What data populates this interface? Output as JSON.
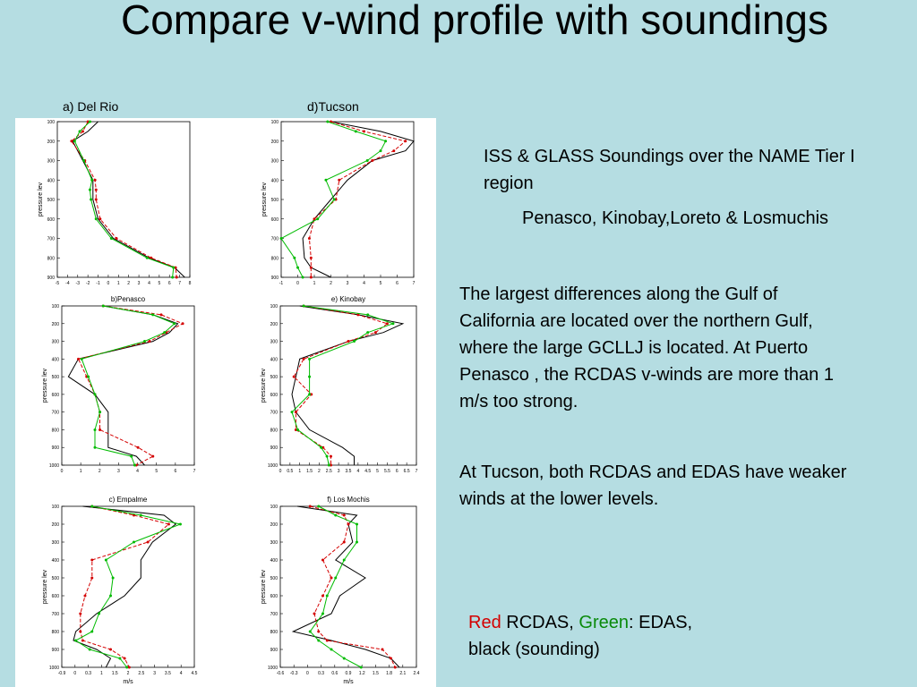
{
  "slide": {
    "title": "Compare v-wind profile with soundings",
    "top_labels": {
      "left": "a) Del Rio",
      "right": "d)Tucson"
    },
    "text": {
      "p1": "ISS & GLASS  Soundings over the NAME Tier I region",
      "p2": "Penasco, Kinobay,Loreto & Losmuchis",
      "p3": "The largest differences along the Gulf of California are located over the northern Gulf, where the large GCLLJ is located. At Puerto Penasco , the RCDAS v-winds are  more than 1 m/s too strong.",
      "p4": "At  Tucson, both RCDAS and EDAS have weaker winds at the lower levels.",
      "legend": {
        "red_word": "Red",
        "red_rest": " RCDAS, ",
        "green_word": "Green",
        "green_rest": ": EDAS,",
        "black_rest": "black (sounding)"
      }
    }
  },
  "colors": {
    "bg": "#b5dde2",
    "sounding": "#000000",
    "rcdas": "#d40000",
    "edas": "#00bb00"
  },
  "chart_data": [
    {
      "type": "line",
      "panel_title": "",
      "ylabel": "pressure lev",
      "xlabel": "",
      "ylim": [
        100,
        900
      ],
      "yticks": [
        100,
        200,
        300,
        400,
        500,
        600,
        700,
        800,
        900
      ],
      "xlim": [
        -5,
        8
      ],
      "xtick_labels": [
        "-5",
        "-4",
        "-3",
        "-2",
        "-1",
        "0",
        "1",
        "2",
        "3",
        "4",
        "5",
        "6",
        "7",
        "8"
      ],
      "y": [
        100,
        150,
        200,
        300,
        400,
        450,
        500,
        600,
        700,
        800,
        850,
        900
      ],
      "series": [
        {
          "name": "sounding",
          "values": [
            -1.0,
            -2.0,
            -3.5,
            -2.5,
            -1.5,
            -1.5,
            -1.5,
            -1.0,
            0.5,
            4.0,
            6.5,
            7.5
          ]
        },
        {
          "name": "RCDAS",
          "values": [
            -2.0,
            -2.5,
            -3.6,
            -2.3,
            -1.3,
            -1.2,
            -1.2,
            -0.8,
            0.8,
            4.2,
            6.6,
            6.7
          ]
        },
        {
          "name": "EDAS",
          "values": [
            -1.8,
            -2.8,
            -3.3,
            -2.4,
            -1.6,
            -1.8,
            -1.7,
            -1.2,
            0.3,
            3.8,
            6.4,
            6.3
          ]
        }
      ]
    },
    {
      "type": "line",
      "panel_title": "",
      "ylabel": "pressure lev",
      "xlabel": "",
      "ylim": [
        100,
        900
      ],
      "yticks": [
        100,
        200,
        300,
        400,
        500,
        600,
        700,
        800,
        900
      ],
      "xlim": [
        -1,
        7
      ],
      "xtick_labels": [
        "-1",
        "0",
        "1",
        "2",
        "3",
        "4",
        "5",
        "6",
        "7"
      ],
      "y": [
        100,
        150,
        200,
        250,
        300,
        400,
        500,
        600,
        700,
        800,
        850,
        900
      ],
      "series": [
        {
          "name": "sounding",
          "values": [
            2.0,
            5.0,
            7.0,
            6.5,
            4.5,
            3.0,
            2.0,
            1.0,
            0.3,
            0.4,
            0.8,
            2.0
          ]
        },
        {
          "name": "RCDAS",
          "values": [
            2.0,
            4.0,
            6.5,
            5.8,
            4.5,
            2.5,
            2.3,
            1.0,
            0.7,
            0.8,
            0.8,
            0.8
          ]
        },
        {
          "name": "EDAS",
          "values": [
            1.8,
            3.5,
            5.3,
            5.0,
            4.2,
            1.7,
            2.2,
            1.2,
            -1.0,
            -0.2,
            0.0,
            0.3
          ]
        }
      ]
    },
    {
      "type": "line",
      "panel_title": "b)Penasco",
      "ylabel": "pressure lev",
      "xlabel": "",
      "ylim": [
        100,
        1000
      ],
      "yticks": [
        100,
        200,
        300,
        400,
        500,
        600,
        700,
        800,
        900,
        1000
      ],
      "xlim": [
        0,
        8
      ],
      "xtick_labels": [
        "0",
        "1",
        "2",
        "3",
        "4",
        "5",
        "6",
        "7"
      ],
      "y": [
        100,
        150,
        200,
        250,
        300,
        400,
        500,
        600,
        700,
        800,
        900,
        950,
        1000
      ],
      "series": [
        {
          "name": "sounding",
          "values": [
            2.5,
            5.5,
            7.0,
            6.5,
            5.5,
            1.0,
            0.4,
            2.0,
            2.8,
            2.8,
            2.8,
            4.5,
            5.0
          ]
        },
        {
          "name": "RCDAS",
          "values": [
            2.5,
            6.0,
            7.3,
            6.3,
            5.3,
            1.0,
            1.5,
            2.0,
            2.3,
            2.3,
            4.6,
            5.5,
            4.5
          ]
        },
        {
          "name": "EDAS",
          "values": [
            2.5,
            5.5,
            6.8,
            6.2,
            5.0,
            1.2,
            1.6,
            2.0,
            2.3,
            2.0,
            2.0,
            4.2,
            4.4
          ]
        }
      ]
    },
    {
      "type": "line",
      "panel_title": "e)  Kinobay",
      "ylabel": "pressure lev",
      "xlabel": "",
      "ylim": [
        100,
        1000
      ],
      "yticks": [
        100,
        200,
        300,
        400,
        500,
        600,
        700,
        800,
        900,
        1000
      ],
      "xlim": [
        0,
        7
      ],
      "xtick_labels": [
        "0",
        "0.5",
        "1",
        "1.5",
        "2",
        "2.5",
        "3",
        "3.5",
        "4",
        "4.5",
        "5",
        "5.5",
        "6",
        "6.5",
        "7"
      ],
      "y": [
        100,
        150,
        200,
        250,
        300,
        400,
        500,
        600,
        700,
        800,
        900,
        950,
        1000
      ],
      "series": [
        {
          "name": "sounding",
          "values": [
            1.0,
            4.0,
            6.3,
            5.3,
            3.5,
            1.0,
            0.8,
            0.6,
            0.8,
            1.5,
            3.2,
            3.8,
            3.8
          ]
        },
        {
          "name": "RCDAS",
          "values": [
            1.2,
            4.0,
            5.5,
            4.9,
            3.5,
            1.2,
            0.7,
            1.6,
            0.8,
            0.8,
            2.2,
            2.6,
            2.6
          ]
        },
        {
          "name": "EDAS",
          "values": [
            1.2,
            4.5,
            5.8,
            4.5,
            3.8,
            1.5,
            1.5,
            1.5,
            0.6,
            0.9,
            2.1,
            2.4,
            2.5
          ]
        }
      ]
    },
    {
      "type": "line",
      "panel_title": "c)  Empalme",
      "ylabel": "pressure lev",
      "xlabel": "m/s",
      "ylim": [
        100,
        1000
      ],
      "yticks": [
        100,
        200,
        300,
        400,
        500,
        600,
        700,
        800,
        900,
        1000
      ],
      "xlim": [
        -0.9,
        4.8
      ],
      "xtick_labels": [
        "-0.9",
        "0",
        "0.3",
        "1",
        "1.5",
        "2",
        "2.5",
        "3",
        "3.5",
        "4",
        "4.5"
      ],
      "y": [
        100,
        150,
        200,
        300,
        400,
        500,
        600,
        700,
        800,
        850,
        900,
        950,
        1000
      ],
      "series": [
        {
          "name": "sounding",
          "values": [
            0.0,
            3.5,
            4.0,
            3.0,
            2.5,
            2.5,
            1.8,
            0.6,
            -0.3,
            -0.4,
            0.6,
            1.2,
            1.0
          ]
        },
        {
          "name": "RCDAS",
          "values": [
            0.4,
            2.2,
            3.7,
            2.8,
            0.4,
            0.4,
            0.1,
            -0.1,
            -0.1,
            0.0,
            1.2,
            1.8,
            2.0
          ]
        },
        {
          "name": "EDAS",
          "values": [
            0.4,
            2.5,
            4.2,
            2.2,
            1.0,
            1.3,
            1.2,
            0.7,
            0.4,
            -0.3,
            0.3,
            1.6,
            1.9
          ]
        }
      ]
    },
    {
      "type": "line",
      "panel_title": "f)  Los Mochis",
      "ylabel": "pressure lev",
      "xlabel": "m/s",
      "ylim": [
        100,
        1000
      ],
      "yticks": [
        100,
        200,
        300,
        400,
        500,
        600,
        700,
        800,
        900,
        1000
      ],
      "xlim": [
        -0.6,
        2.6
      ],
      "xtick_labels": [
        "-0.6",
        "-0.3",
        "0",
        "0.3",
        "0.6",
        "0.9",
        "1.2",
        "1.5",
        "1.8",
        "2.1",
        "2.4"
      ],
      "y": [
        100,
        150,
        200,
        300,
        400,
        500,
        600,
        700,
        800,
        850,
        900,
        950,
        1000
      ],
      "series": [
        {
          "name": "sounding",
          "values": [
            -0.2,
            1.2,
            1.0,
            1.1,
            0.7,
            1.4,
            0.8,
            0.6,
            -0.3,
            0.6,
            1.4,
            2.0,
            2.2
          ]
        },
        {
          "name": "RCDAS",
          "values": [
            0.1,
            0.9,
            1.0,
            0.9,
            0.4,
            0.6,
            0.4,
            0.2,
            0.3,
            0.5,
            1.8,
            2.0,
            2.1
          ]
        },
        {
          "name": "EDAS",
          "values": [
            0.3,
            0.7,
            1.2,
            1.2,
            0.9,
            0.7,
            0.5,
            0.4,
            0.1,
            0.3,
            0.6,
            0.9,
            1.3
          ]
        }
      ]
    }
  ]
}
